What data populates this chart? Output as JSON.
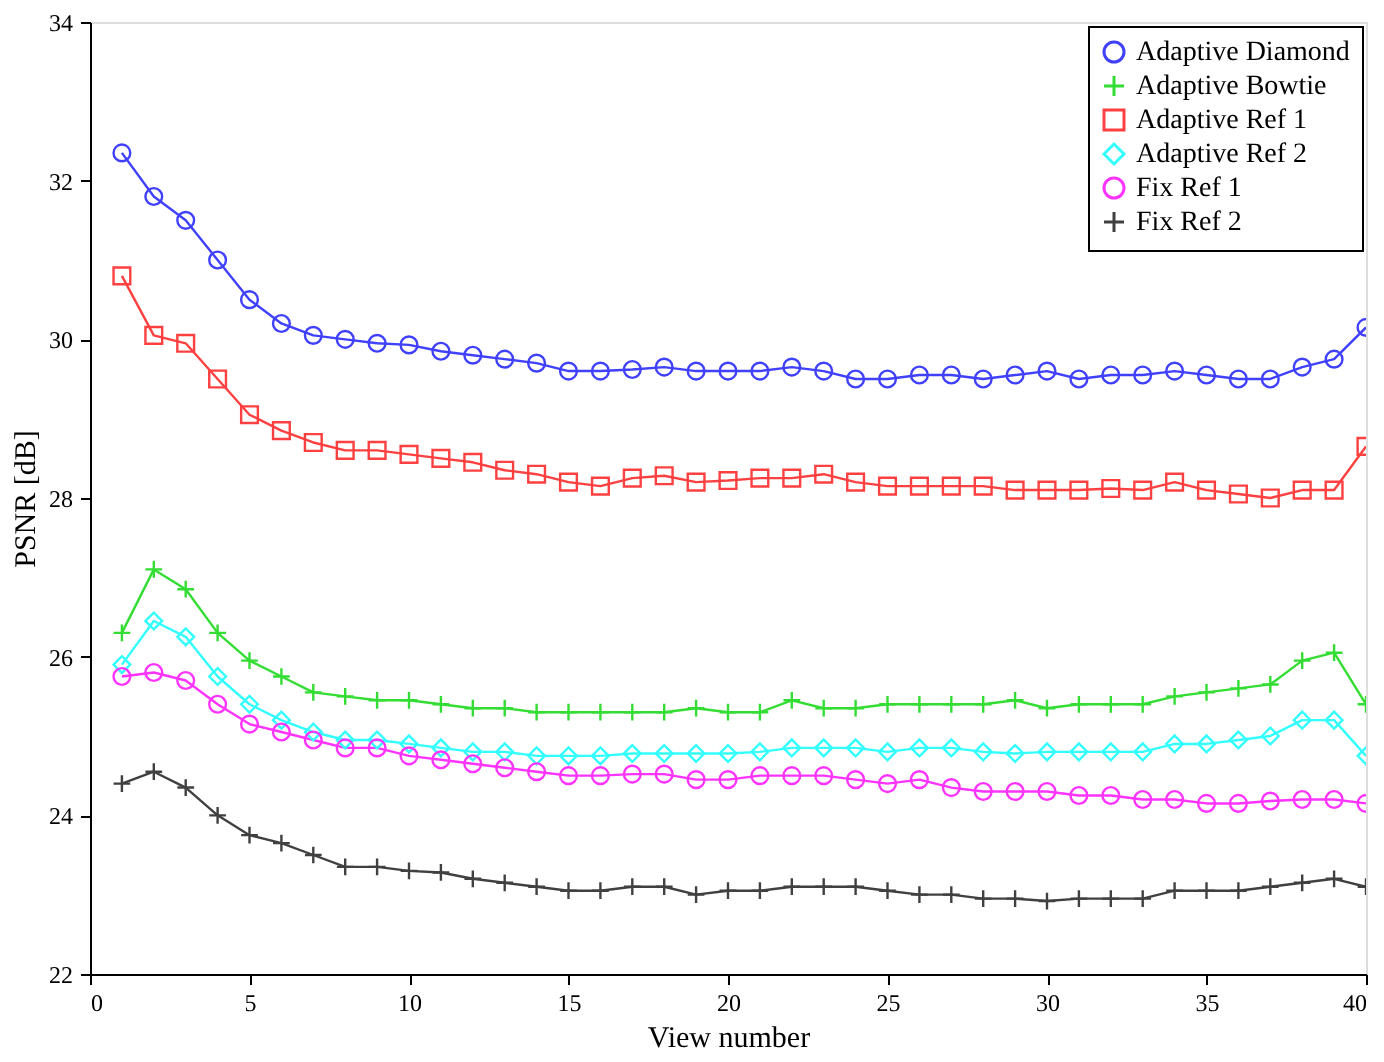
{
  "chart_data": {
    "type": "line",
    "xlabel": "View number",
    "ylabel": "PSNR [dB]",
    "x": [
      1,
      2,
      3,
      4,
      5,
      6,
      7,
      8,
      9,
      10,
      11,
      12,
      13,
      14,
      15,
      16,
      17,
      18,
      19,
      20,
      21,
      22,
      23,
      24,
      25,
      26,
      27,
      28,
      29,
      30,
      31,
      32,
      33,
      34,
      35,
      36,
      37,
      38,
      39,
      40
    ],
    "xlim": [
      0,
      40
    ],
    "xticks": [
      0,
      5,
      10,
      15,
      20,
      25,
      30,
      35,
      40
    ],
    "ylim": [
      22,
      34
    ],
    "yticks": [
      22,
      24,
      26,
      28,
      30,
      32,
      34
    ],
    "grid": false,
    "legend": "top right",
    "line_style": "solid",
    "series": [
      {
        "name": "Adaptive Diamond",
        "color": "#4040ff",
        "marker": "circle",
        "values": [
          32.35,
          31.8,
          31.5,
          31.0,
          30.5,
          30.2,
          30.05,
          30.0,
          29.95,
          29.93,
          29.85,
          29.8,
          29.75,
          29.7,
          29.6,
          29.6,
          29.62,
          29.65,
          29.6,
          29.6,
          29.6,
          29.65,
          29.6,
          29.5,
          29.5,
          29.55,
          29.55,
          29.5,
          29.55,
          29.6,
          29.5,
          29.55,
          29.55,
          29.6,
          29.55,
          29.5,
          29.5,
          29.65,
          29.75,
          30.15
        ]
      },
      {
        "name": "Adaptive Bowtie",
        "color": "#33dd33",
        "marker": "cross",
        "values": [
          26.3,
          27.1,
          26.85,
          26.3,
          25.95,
          25.75,
          25.55,
          25.5,
          25.45,
          25.45,
          25.4,
          25.35,
          25.35,
          25.3,
          25.3,
          25.3,
          25.3,
          25.3,
          25.35,
          25.3,
          25.3,
          25.45,
          25.35,
          25.35,
          25.4,
          25.4,
          25.4,
          25.4,
          25.45,
          25.35,
          25.4,
          25.4,
          25.4,
          25.5,
          25.55,
          25.6,
          25.65,
          25.95,
          26.05,
          25.4
        ]
      },
      {
        "name": "Adaptive Ref 1",
        "color": "#ff4040",
        "marker": "square",
        "values": [
          30.8,
          30.05,
          29.95,
          29.5,
          29.05,
          28.85,
          28.7,
          28.6,
          28.6,
          28.55,
          28.5,
          28.45,
          28.35,
          28.3,
          28.2,
          28.15,
          28.25,
          28.28,
          28.2,
          28.22,
          28.25,
          28.25,
          28.3,
          28.2,
          28.15,
          28.15,
          28.15,
          28.15,
          28.1,
          28.1,
          28.1,
          28.12,
          28.1,
          28.2,
          28.1,
          28.05,
          28.0,
          28.1,
          28.1,
          28.65
        ]
      },
      {
        "name": "Adaptive Ref 2",
        "color": "#33ffff",
        "marker": "diamond",
        "values": [
          25.9,
          26.45,
          26.25,
          25.75,
          25.4,
          25.2,
          25.05,
          24.95,
          24.95,
          24.9,
          24.85,
          24.8,
          24.8,
          24.75,
          24.75,
          24.75,
          24.78,
          24.78,
          24.78,
          24.78,
          24.8,
          24.85,
          24.85,
          24.85,
          24.8,
          24.85,
          24.85,
          24.8,
          24.78,
          24.8,
          24.8,
          24.8,
          24.8,
          24.9,
          24.9,
          24.95,
          25.0,
          25.2,
          25.2,
          24.75
        ]
      },
      {
        "name": "Fix Ref 1",
        "color": "#ff33ff",
        "marker": "circle",
        "values": [
          25.75,
          25.8,
          25.7,
          25.4,
          25.15,
          25.05,
          24.95,
          24.85,
          24.85,
          24.75,
          24.7,
          24.65,
          24.6,
          24.55,
          24.5,
          24.5,
          24.52,
          24.52,
          24.45,
          24.45,
          24.5,
          24.5,
          24.5,
          24.45,
          24.4,
          24.45,
          24.35,
          24.3,
          24.3,
          24.3,
          24.25,
          24.25,
          24.2,
          24.2,
          24.15,
          24.15,
          24.18,
          24.2,
          24.2,
          24.15
        ]
      },
      {
        "name": "Fix Ref 2",
        "color": "#404040",
        "marker": "cross",
        "values": [
          24.4,
          24.55,
          24.35,
          24.0,
          23.75,
          23.65,
          23.5,
          23.35,
          23.35,
          23.3,
          23.28,
          23.2,
          23.15,
          23.1,
          23.05,
          23.05,
          23.1,
          23.1,
          23.0,
          23.05,
          23.05,
          23.1,
          23.1,
          23.1,
          23.05,
          23.0,
          23.0,
          22.95,
          22.95,
          22.92,
          22.95,
          22.95,
          22.95,
          23.05,
          23.05,
          23.05,
          23.1,
          23.15,
          23.2,
          23.1
        ]
      }
    ]
  }
}
